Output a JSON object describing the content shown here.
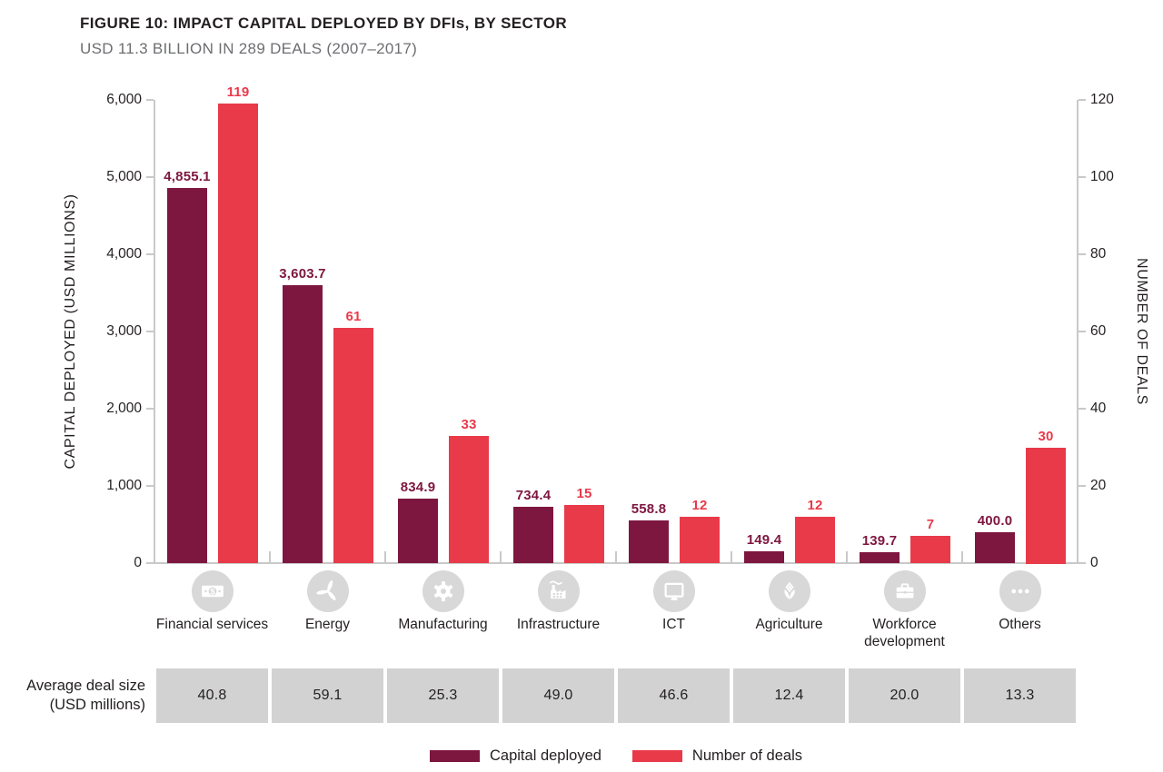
{
  "header": {
    "title": "FIGURE 10: IMPACT CAPITAL DEPLOYED BY DFIs, BY SECTOR",
    "subtitle": "USD 11.3 BILLION IN 289 DEALS (2007–2017)"
  },
  "chart_data": {
    "type": "bar",
    "categories": [
      "Financial services",
      "Energy",
      "Manufacturing",
      "Infrastructure",
      "ICT",
      "Agriculture",
      "Workforce development",
      "Others"
    ],
    "category_icons": [
      "banknote-icon",
      "wind-turbine-icon",
      "gear-icon",
      "factory-icon",
      "monitor-icon",
      "corn-icon",
      "briefcase-icon",
      "ellipsis-icon"
    ],
    "series": [
      {
        "name": "Capital deployed",
        "axis": "left",
        "color": "#7e1740",
        "values": [
          4855.1,
          3603.7,
          834.9,
          734.4,
          558.8,
          149.4,
          139.7,
          400.0
        ],
        "value_labels": [
          "4,855.1",
          "3,603.7",
          "834.9",
          "734.4",
          "558.8",
          "149.4",
          "139.7",
          "400.0"
        ]
      },
      {
        "name": "Number of deals",
        "axis": "right",
        "color": "#e93a4a",
        "values": [
          119,
          61,
          33,
          15,
          12,
          12,
          7,
          30
        ],
        "value_labels": [
          "119",
          "61",
          "33",
          "15",
          "12",
          "12",
          "7",
          "30"
        ]
      }
    ],
    "left_axis": {
      "title": "CAPITAL DEPLOYED (USD MILLIONS)",
      "min": 0,
      "max": 6000,
      "tick_labels": [
        "6,000",
        "5,000",
        "4,000",
        "3,000",
        "2,000",
        "1,000",
        "0"
      ]
    },
    "right_axis": {
      "title": "NUMBER OF DEALS",
      "min": 0,
      "max": 120,
      "tick_labels": [
        "120",
        "100",
        "80",
        "60",
        "40",
        "20",
        "0"
      ]
    },
    "average_deal_size": {
      "label_line1": "Average deal size",
      "label_line2": "(USD millions)",
      "values": [
        "40.8",
        "59.1",
        "25.3",
        "49.0",
        "46.6",
        "12.4",
        "20.0",
        "13.3"
      ]
    },
    "legend": [
      {
        "label": "Capital deployed",
        "color": "#7e1740"
      },
      {
        "label": "Number of deals",
        "color": "#e93a4a"
      }
    ],
    "layout_hints": {
      "grid": false,
      "legend_position": "bottom-center",
      "dual_axis": true
    }
  },
  "colors": {
    "capital": "#7e1740",
    "deals": "#e93a4a",
    "icon_gray": "#d8d8d8",
    "cell_gray": "#d2d2d3",
    "axis_gray": "#c9c9c9",
    "text_dark": "#231f20",
    "text_gray": "#6d6e71"
  }
}
